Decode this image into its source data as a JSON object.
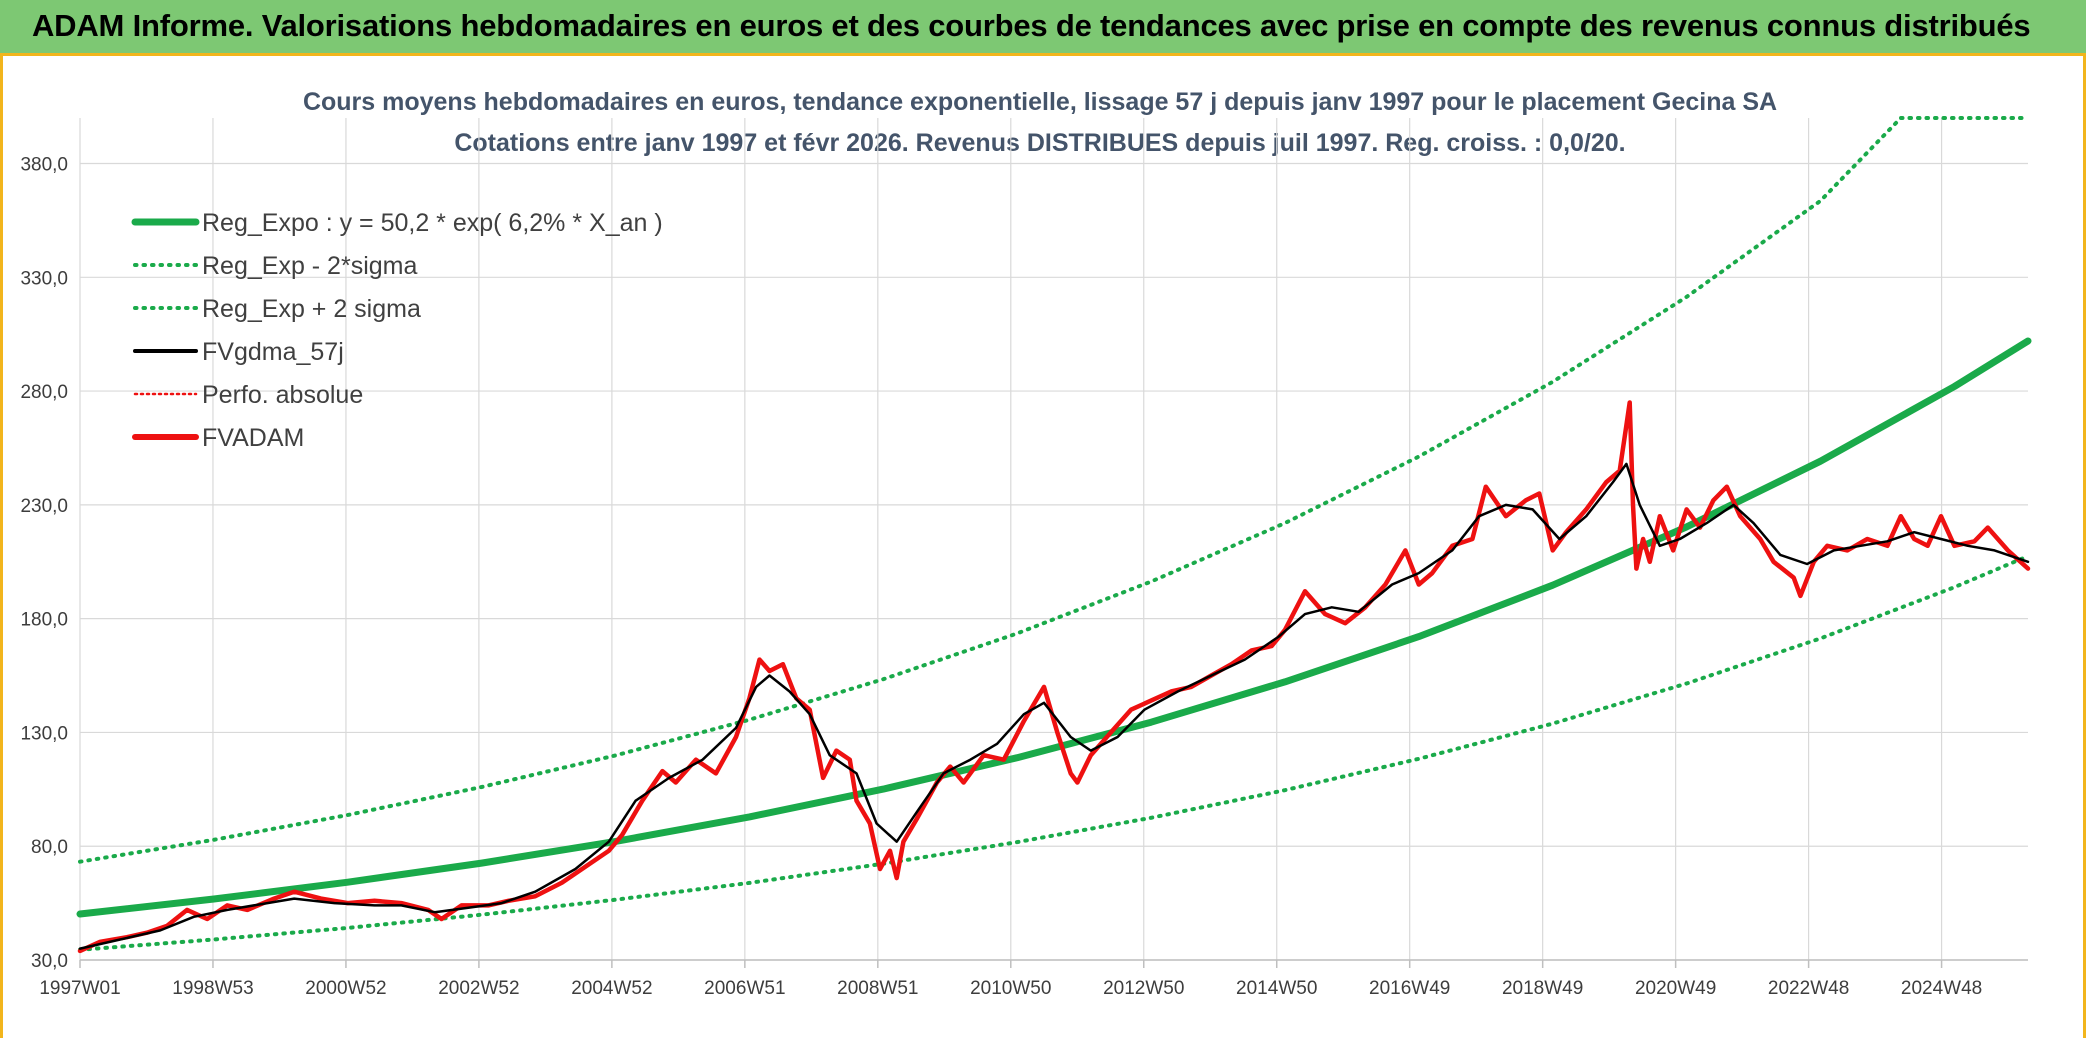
{
  "banner": {
    "title": "ADAM Informe. Valorisations hebdomadaires en euros et des courbes de tendances avec prise en compte des revenus connus distribués"
  },
  "colors": {
    "banner_bg": "#7dc873",
    "border_accent": "#f2b51c",
    "trend_green": "#1aaa4a",
    "price_red": "#ee1111",
    "ma_black": "#000000",
    "title_slate": "#44546a"
  },
  "chart_data": {
    "type": "line",
    "title_lines": [
      "Cours moyens hebdomadaires en euros, tendance exponentielle, lissage 57 j depuis janv 1997 pour le placement Gecina SA",
      "Cotations entre janv 1997 et févr 2026. Revenus DISTRIBUES depuis juil 1997. Reg. croiss. : 0,0/20."
    ],
    "x_range_years": [
      1997.0,
      2026.1
    ],
    "x_ticks": [
      "1997W01",
      "1998W53",
      "2000W52",
      "2002W52",
      "2004W52",
      "2006W51",
      "2008W51",
      "2010W50",
      "2012W50",
      "2014W50",
      "2016W49",
      "2018W49",
      "2020W49",
      "2022W48",
      "2024W48"
    ],
    "ylim": [
      30,
      400
    ],
    "y_ticks": [
      "30,0",
      "80,0",
      "130,0",
      "180,0",
      "230,0",
      "280,0",
      "330,0",
      "380,0"
    ],
    "grid": true,
    "legend_position": "top-left",
    "legend": [
      {
        "label": "Reg_Expo : y = 50,2 * exp( 6,2% *  X_an )",
        "style": "solid-thick",
        "color": "#1aaa4a"
      },
      {
        "label": "Reg_Exp - 2*sigma",
        "style": "dotted",
        "color": "#1aaa4a"
      },
      {
        "label": "Reg_Exp + 2 sigma",
        "style": "dotted",
        "color": "#1aaa4a"
      },
      {
        "label": "FVgdma_57j",
        "style": "solid",
        "color": "#000000"
      },
      {
        "label": "Perfo. absolue",
        "style": "dotted-thin",
        "color": "#ee1111"
      },
      {
        "label": "FVADAM",
        "style": "solid-thick",
        "color": "#ee1111"
      }
    ],
    "regression": {
      "a": 50.2,
      "rate": 0.062,
      "x0_year": 1997.0
    },
    "series": [
      {
        "name": "Reg_Expo",
        "points": [
          [
            1997.0,
            50.2
          ],
          [
            1999.0,
            56.8
          ],
          [
            2001.0,
            64.2
          ],
          [
            2003.0,
            72.6
          ],
          [
            2005.0,
            82.1
          ],
          [
            2007.0,
            92.9
          ],
          [
            2009.0,
            105.1
          ],
          [
            2011.0,
            118.9
          ],
          [
            2013.0,
            134.5
          ],
          [
            2015.0,
            152.2
          ],
          [
            2017.0,
            172.1
          ],
          [
            2019.0,
            194.7
          ],
          [
            2021.0,
            220.3
          ],
          [
            2023.0,
            249.2
          ],
          [
            2025.0,
            282.0
          ],
          [
            2026.1,
            302.0
          ]
        ]
      },
      {
        "name": "Reg_Exp - 2*sigma",
        "points": [
          [
            1997.0,
            34.5
          ],
          [
            1999.0,
            39.0
          ],
          [
            2001.0,
            44.1
          ],
          [
            2003.0,
            49.9
          ],
          [
            2005.0,
            56.5
          ],
          [
            2007.0,
            63.9
          ],
          [
            2009.0,
            72.3
          ],
          [
            2011.0,
            81.8
          ],
          [
            2013.0,
            92.5
          ],
          [
            2015.0,
            104.6
          ],
          [
            2017.0,
            118.4
          ],
          [
            2019.0,
            133.9
          ],
          [
            2021.0,
            151.5
          ],
          [
            2023.0,
            171.3
          ],
          [
            2025.0,
            193.8
          ],
          [
            2026.1,
            207.5
          ]
        ]
      },
      {
        "name": "Reg_Exp + 2 sigma",
        "points": [
          [
            1997.0,
            73.2
          ],
          [
            1999.0,
            82.8
          ],
          [
            2001.0,
            93.7
          ],
          [
            2003.0,
            106.0
          ],
          [
            2005.0,
            119.9
          ],
          [
            2007.0,
            135.6
          ],
          [
            2009.0,
            153.4
          ],
          [
            2011.0,
            173.5
          ],
          [
            2013.0,
            196.3
          ],
          [
            2015.0,
            222.0
          ],
          [
            2017.0,
            251.2
          ],
          [
            2019.0,
            284.1
          ],
          [
            2021.0,
            321.4
          ],
          [
            2023.0,
            363.6
          ],
          [
            2024.2,
            400.0
          ],
          [
            2026.1,
            400.0
          ]
        ]
      },
      {
        "name": "FVgdma_57j",
        "points": [
          [
            1997.0,
            35.0
          ],
          [
            1997.6,
            39.0
          ],
          [
            1998.2,
            43.0
          ],
          [
            1998.7,
            49.0
          ],
          [
            1999.2,
            52.0
          ],
          [
            1999.8,
            55.0
          ],
          [
            2000.2,
            57.0
          ],
          [
            2000.8,
            55.0
          ],
          [
            2001.4,
            54.0
          ],
          [
            2001.8,
            54.0
          ],
          [
            2002.3,
            51.0
          ],
          [
            2002.8,
            53.0
          ],
          [
            2003.3,
            55.0
          ],
          [
            2003.8,
            60.0
          ],
          [
            2004.4,
            70.0
          ],
          [
            2004.9,
            82.0
          ],
          [
            2005.3,
            100.0
          ],
          [
            2005.8,
            110.0
          ],
          [
            2006.3,
            118.0
          ],
          [
            2006.8,
            132.0
          ],
          [
            2007.1,
            150.0
          ],
          [
            2007.3,
            155.0
          ],
          [
            2007.6,
            148.0
          ],
          [
            2007.9,
            138.0
          ],
          [
            2008.2,
            120.0
          ],
          [
            2008.6,
            112.0
          ],
          [
            2008.9,
            90.0
          ],
          [
            2009.2,
            82.0
          ],
          [
            2009.5,
            95.0
          ],
          [
            2009.9,
            112.0
          ],
          [
            2010.3,
            118.0
          ],
          [
            2010.7,
            125.0
          ],
          [
            2011.1,
            138.0
          ],
          [
            2011.4,
            143.0
          ],
          [
            2011.8,
            128.0
          ],
          [
            2012.1,
            122.0
          ],
          [
            2012.5,
            128.0
          ],
          [
            2012.9,
            140.0
          ],
          [
            2013.4,
            148.0
          ],
          [
            2013.9,
            155.0
          ],
          [
            2014.4,
            162.0
          ],
          [
            2014.9,
            172.0
          ],
          [
            2015.3,
            182.0
          ],
          [
            2015.7,
            185.0
          ],
          [
            2016.1,
            183.0
          ],
          [
            2016.6,
            195.0
          ],
          [
            2017.0,
            200.0
          ],
          [
            2017.5,
            210.0
          ],
          [
            2017.9,
            225.0
          ],
          [
            2018.3,
            230.0
          ],
          [
            2018.7,
            228.0
          ],
          [
            2019.1,
            215.0
          ],
          [
            2019.5,
            225.0
          ],
          [
            2019.9,
            240.0
          ],
          [
            2020.1,
            248.0
          ],
          [
            2020.3,
            230.0
          ],
          [
            2020.6,
            212.0
          ],
          [
            2020.9,
            215.0
          ],
          [
            2021.3,
            222.0
          ],
          [
            2021.7,
            230.0
          ],
          [
            2022.0,
            222.0
          ],
          [
            2022.4,
            208.0
          ],
          [
            2022.8,
            204.0
          ],
          [
            2023.2,
            210.0
          ],
          [
            2023.6,
            212.0
          ],
          [
            2024.0,
            214.0
          ],
          [
            2024.4,
            218.0
          ],
          [
            2024.8,
            215.0
          ],
          [
            2025.2,
            212.0
          ],
          [
            2025.6,
            210.0
          ],
          [
            2026.1,
            205.0
          ]
        ]
      },
      {
        "name": "FVADAM",
        "points": [
          [
            1997.0,
            34.0
          ],
          [
            1997.3,
            38.0
          ],
          [
            1997.7,
            40.0
          ],
          [
            1998.0,
            42.0
          ],
          [
            1998.3,
            45.0
          ],
          [
            1998.6,
            52.0
          ],
          [
            1998.9,
            48.0
          ],
          [
            1999.2,
            54.0
          ],
          [
            1999.5,
            52.0
          ],
          [
            1999.9,
            57.0
          ],
          [
            2000.2,
            60.0
          ],
          [
            2000.6,
            57.0
          ],
          [
            2001.0,
            55.0
          ],
          [
            2001.4,
            56.0
          ],
          [
            2001.8,
            55.0
          ],
          [
            2002.2,
            52.0
          ],
          [
            2002.4,
            48.0
          ],
          [
            2002.7,
            54.0
          ],
          [
            2003.1,
            54.0
          ],
          [
            2003.4,
            56.0
          ],
          [
            2003.8,
            58.0
          ],
          [
            2004.2,
            64.0
          ],
          [
            2004.6,
            72.0
          ],
          [
            2004.9,
            78.0
          ],
          [
            2005.1,
            85.0
          ],
          [
            2005.4,
            100.0
          ],
          [
            2005.7,
            113.0
          ],
          [
            2005.9,
            108.0
          ],
          [
            2006.2,
            118.0
          ],
          [
            2006.5,
            112.0
          ],
          [
            2006.8,
            128.0
          ],
          [
            2007.0,
            145.0
          ],
          [
            2007.15,
            162.0
          ],
          [
            2007.3,
            157.0
          ],
          [
            2007.5,
            160.0
          ],
          [
            2007.7,
            145.0
          ],
          [
            2007.9,
            140.0
          ],
          [
            2008.1,
            110.0
          ],
          [
            2008.3,
            122.0
          ],
          [
            2008.5,
            118.0
          ],
          [
            2008.6,
            100.0
          ],
          [
            2008.8,
            90.0
          ],
          [
            2008.95,
            70.0
          ],
          [
            2009.1,
            78.0
          ],
          [
            2009.2,
            66.0
          ],
          [
            2009.3,
            82.0
          ],
          [
            2009.5,
            92.0
          ],
          [
            2009.8,
            108.0
          ],
          [
            2010.0,
            115.0
          ],
          [
            2010.2,
            108.0
          ],
          [
            2010.5,
            120.0
          ],
          [
            2010.8,
            118.0
          ],
          [
            2011.1,
            135.0
          ],
          [
            2011.4,
            150.0
          ],
          [
            2011.6,
            130.0
          ],
          [
            2011.8,
            112.0
          ],
          [
            2011.9,
            108.0
          ],
          [
            2012.1,
            120.0
          ],
          [
            2012.4,
            130.0
          ],
          [
            2012.7,
            140.0
          ],
          [
            2013.0,
            144.0
          ],
          [
            2013.3,
            148.0
          ],
          [
            2013.6,
            150.0
          ],
          [
            2013.9,
            155.0
          ],
          [
            2014.2,
            160.0
          ],
          [
            2014.5,
            166.0
          ],
          [
            2014.8,
            168.0
          ],
          [
            2015.0,
            175.0
          ],
          [
            2015.3,
            192.0
          ],
          [
            2015.6,
            182.0
          ],
          [
            2015.9,
            178.0
          ],
          [
            2016.2,
            185.0
          ],
          [
            2016.5,
            195.0
          ],
          [
            2016.8,
            210.0
          ],
          [
            2017.0,
            195.0
          ],
          [
            2017.2,
            200.0
          ],
          [
            2017.5,
            212.0
          ],
          [
            2017.8,
            215.0
          ],
          [
            2018.0,
            238.0
          ],
          [
            2018.3,
            225.0
          ],
          [
            2018.6,
            232.0
          ],
          [
            2018.8,
            235.0
          ],
          [
            2019.0,
            210.0
          ],
          [
            2019.2,
            218.0
          ],
          [
            2019.5,
            228.0
          ],
          [
            2019.8,
            240.0
          ],
          [
            2020.0,
            245.0
          ],
          [
            2020.1,
            265.0
          ],
          [
            2020.15,
            275.0
          ],
          [
            2020.2,
            230.0
          ],
          [
            2020.25,
            202.0
          ],
          [
            2020.35,
            215.0
          ],
          [
            2020.45,
            205.0
          ],
          [
            2020.6,
            225.0
          ],
          [
            2020.8,
            210.0
          ],
          [
            2021.0,
            228.0
          ],
          [
            2021.2,
            220.0
          ],
          [
            2021.4,
            232.0
          ],
          [
            2021.6,
            238.0
          ],
          [
            2021.8,
            225.0
          ],
          [
            2022.1,
            215.0
          ],
          [
            2022.3,
            205.0
          ],
          [
            2022.6,
            198.0
          ],
          [
            2022.7,
            190.0
          ],
          [
            2022.9,
            205.0
          ],
          [
            2023.1,
            212.0
          ],
          [
            2023.4,
            210.0
          ],
          [
            2023.7,
            215.0
          ],
          [
            2024.0,
            212.0
          ],
          [
            2024.2,
            225.0
          ],
          [
            2024.4,
            215.0
          ],
          [
            2024.6,
            212.0
          ],
          [
            2024.8,
            225.0
          ],
          [
            2025.0,
            212.0
          ],
          [
            2025.3,
            214.0
          ],
          [
            2025.5,
            220.0
          ],
          [
            2025.8,
            210.0
          ],
          [
            2026.1,
            202.0
          ]
        ]
      }
    ]
  }
}
